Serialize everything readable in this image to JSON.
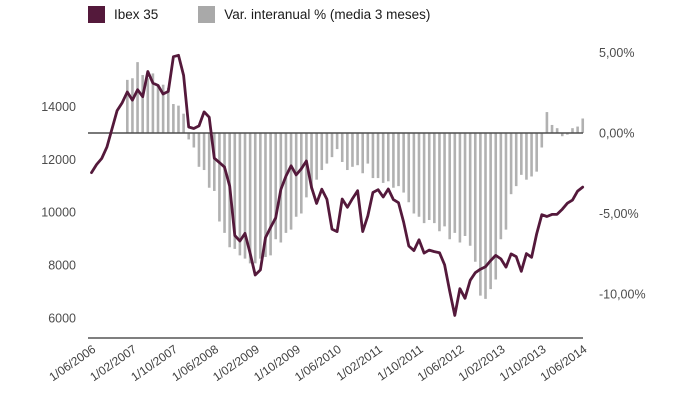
{
  "legend": {
    "items": [
      {
        "label": "Ibex 35",
        "color": "#54193b"
      },
      {
        "label": "Var. interanual % (media 3 meses)",
        "color": "#a9a9a9"
      }
    ]
  },
  "chart_data": {
    "type": "line+bar",
    "title": "",
    "x_start": "1/06/2006",
    "x_step": "1 month",
    "n_points": 97,
    "grid": "off",
    "legend_position": "top-left",
    "x_tick_labels": [
      "1/06/2006",
      "1/02/2007",
      "1/10/2007",
      "1/06/2008",
      "1/02/2009",
      "1/10/2009",
      "1/06/2010",
      "1/02/2011",
      "1/10/2011",
      "1/06/2012",
      "1/02/2013",
      "1/10/2013",
      "1/06/2014"
    ],
    "x_tick_month_indices": [
      0,
      8,
      16,
      24,
      32,
      40,
      48,
      56,
      64,
      72,
      80,
      88,
      96
    ],
    "left_axis": {
      "tick_labels": [
        "14000",
        "12000",
        "10000",
        "8000",
        "6000"
      ],
      "tick_values": [
        14000,
        12000,
        10000,
        8000,
        6000
      ],
      "applies_to": "Ibex 35"
    },
    "right_axis": {
      "tick_labels": [
        "5,00%",
        "0,00%",
        "-5,00%",
        "-10,00%"
      ],
      "tick_values": [
        5,
        0,
        -5,
        -10
      ],
      "applies_to": "Var. interanual % (media 3 meses)"
    },
    "zero_line_at_right_axis_value": 0,
    "series": [
      {
        "name": "Ibex 35",
        "type": "line",
        "axis": "left",
        "color": "#54193b",
        "values": [
          11500,
          11805,
          12034,
          12465,
          13156,
          13849,
          14146,
          14554,
          14248,
          14641,
          14374,
          15329,
          14892,
          14802,
          14479,
          14576,
          15890,
          15945,
          15182,
          13229,
          13170,
          13269,
          13798,
          13600,
          12046,
          11881,
          11707,
          10988,
          9116,
          8910,
          9196,
          8450,
          7620,
          7815,
          9038,
          9424,
          9787,
          10855,
          11365,
          11756,
          11414,
          11644,
          11940,
          10948,
          10333,
          10871,
          10492,
          9359,
          9264,
          10499,
          10187,
          10514,
          10813,
          9267,
          9859,
          10746,
          10851,
          10577,
          10879,
          10476,
          10359,
          9630,
          8719,
          8546,
          8954,
          8449,
          8566,
          8509,
          8465,
          8008,
          7011,
          6090,
          7102,
          6738,
          7420,
          7708,
          7842,
          7934,
          8168,
          8362,
          8230,
          7920,
          8419,
          8320,
          7763,
          8433,
          8290,
          9186,
          9907,
          9838,
          9916,
          9920,
          10114,
          10340,
          10459,
          10798,
          10950
        ]
      },
      {
        "name": "Var. interanual % (media 3 meses)",
        "type": "bar",
        "axis": "right",
        "color": "#b1b1b1",
        "values": [
          null,
          null,
          null,
          null,
          null,
          null,
          null,
          3.3,
          3.4,
          4.4,
          3.6,
          3.4,
          3.7,
          3.0,
          3.0,
          2.8,
          1.8,
          1.7,
          1.2,
          -0.4,
          -0.9,
          -2.1,
          -2.3,
          -3.4,
          -3.6,
          -5.5,
          -6.2,
          -7.1,
          -7.2,
          -7.6,
          -7.8,
          -8.1,
          -8.1,
          -7.8,
          -7.7,
          -7.6,
          -6.6,
          -6.8,
          -6.2,
          -6.0,
          -5.2,
          -5.0,
          -4.0,
          -3.5,
          -2.9,
          -2.3,
          -1.9,
          -1.5,
          -1.0,
          -1.8,
          -2.3,
          -2.1,
          -2.0,
          -2.5,
          -1.9,
          -2.8,
          -2.8,
          -3.1,
          -3.0,
          -3.4,
          -3.3,
          -3.7,
          -4.3,
          -5.0,
          -5.2,
          -5.6,
          -5.4,
          -5.6,
          -6.1,
          -5.8,
          -6.6,
          -6.2,
          -6.8,
          -6.4,
          -7.0,
          -8.0,
          -10.1,
          -10.3,
          -9.7,
          -9.1,
          -6.6,
          -6.0,
          -3.8,
          -3.3,
          -2.6,
          -2.9,
          -2.7,
          -2.4,
          -0.9,
          1.3,
          0.5,
          0.3,
          -0.2,
          -0.1,
          0.3,
          0.4,
          0.9
        ]
      }
    ]
  }
}
